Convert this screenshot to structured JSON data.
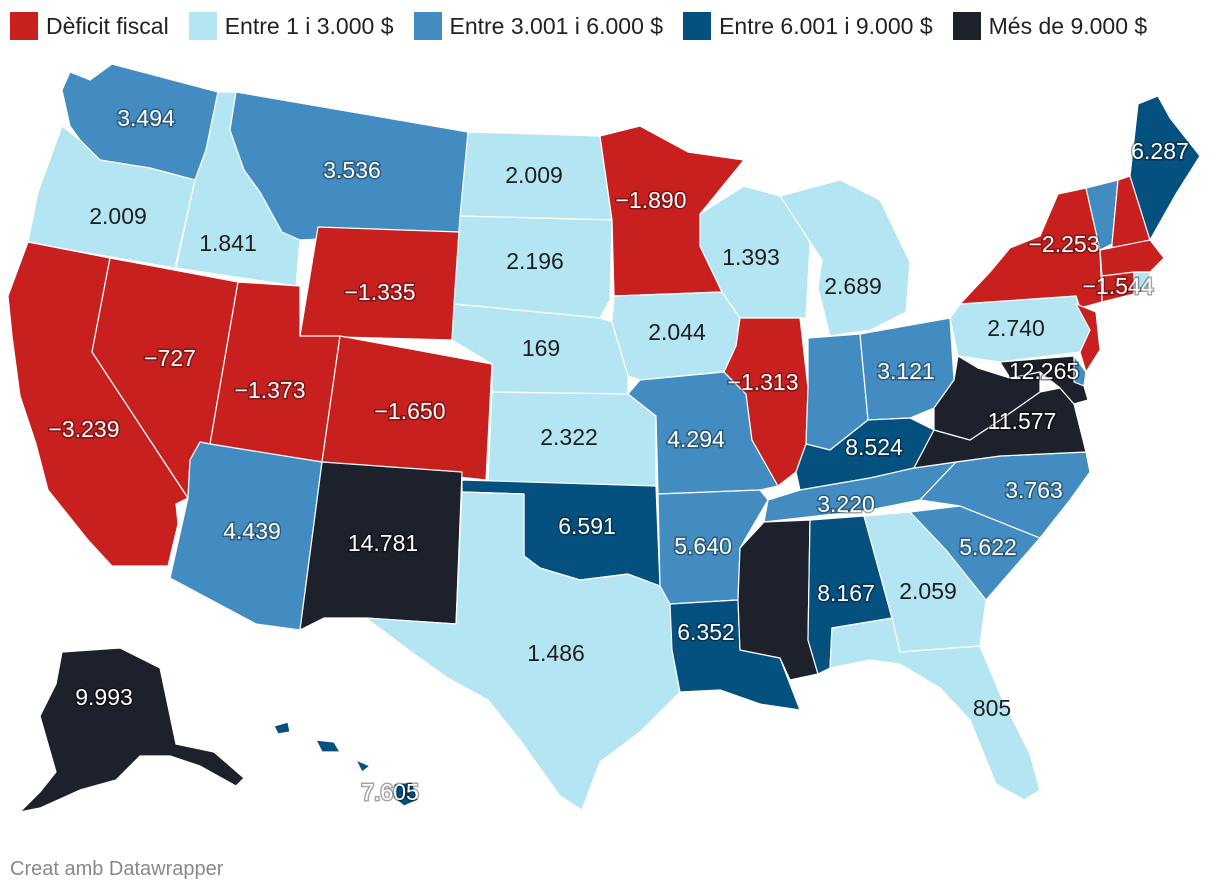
{
  "legend": [
    {
      "label": "Dèficit fiscal",
      "color": "#c8201f"
    },
    {
      "label": "Entre 1 i 3.000 $",
      "color": "#b4e5f2"
    },
    {
      "label": "Entre 3.001 i 6.000 $",
      "color": "#438cc1"
    },
    {
      "label": "Entre 6.001 i 9.000 $",
      "color": "#04507f"
    },
    {
      "label": "Més de 9.000 $",
      "color": "#1c212b"
    }
  ],
  "credit": "Creat amb Datawrapper",
  "chart_data": {
    "type": "choropleth",
    "title": "",
    "categories": [
      "Dèficit fiscal",
      "Entre 1 i 3.000 $",
      "Entre 3.001 i 6.000 $",
      "Entre 6.001 i 9.000 $",
      "Més de 9.000 $"
    ],
    "states": [
      {
        "id": "WA",
        "value": "3.494",
        "category": 2
      },
      {
        "id": "OR",
        "value": "2.009",
        "category": 1
      },
      {
        "id": "CA",
        "value": "−3.239",
        "category": 0
      },
      {
        "id": "ID",
        "value": "1.841",
        "category": 1
      },
      {
        "id": "NV",
        "value": "−727",
        "category": 0
      },
      {
        "id": "MT",
        "value": "3.536",
        "category": 2
      },
      {
        "id": "WY",
        "value": "−1.335",
        "category": 0
      },
      {
        "id": "UT",
        "value": "−1.373",
        "category": 0
      },
      {
        "id": "CO",
        "value": "−1.650",
        "category": 0
      },
      {
        "id": "AZ",
        "value": "4.439",
        "category": 2
      },
      {
        "id": "NM",
        "value": "14.781",
        "category": 4
      },
      {
        "id": "ND",
        "value": "2.009",
        "category": 1
      },
      {
        "id": "SD",
        "value": "2.196",
        "category": 1
      },
      {
        "id": "NE",
        "value": "169",
        "category": 1
      },
      {
        "id": "KS",
        "value": "2.322",
        "category": 1
      },
      {
        "id": "OK",
        "value": "6.591",
        "category": 3
      },
      {
        "id": "TX",
        "value": "1.486",
        "category": 1
      },
      {
        "id": "MN",
        "value": "−1.890",
        "category": 0
      },
      {
        "id": "IA",
        "value": "2.044",
        "category": 1
      },
      {
        "id": "MO",
        "value": "4.294",
        "category": 2
      },
      {
        "id": "AR",
        "value": "5.640",
        "category": 2
      },
      {
        "id": "LA",
        "value": "6.352",
        "category": 3
      },
      {
        "id": "WI",
        "value": "1.393",
        "category": 1
      },
      {
        "id": "IL",
        "value": "−1.313",
        "category": 0
      },
      {
        "id": "MI",
        "value": "2.689",
        "category": 1
      },
      {
        "id": "IN",
        "value": "",
        "category": 2
      },
      {
        "id": "OH",
        "value": "3.121",
        "category": 2
      },
      {
        "id": "KY",
        "value": "8.524",
        "category": 3
      },
      {
        "id": "TN",
        "value": "3.220",
        "category": 2
      },
      {
        "id": "MS",
        "value": "",
        "category": 4
      },
      {
        "id": "AL",
        "value": "8.167",
        "category": 3
      },
      {
        "id": "GA",
        "value": "2.059",
        "category": 1
      },
      {
        "id": "FL",
        "value": "805",
        "category": 1
      },
      {
        "id": "SC",
        "value": "5.622",
        "category": 2
      },
      {
        "id": "NC",
        "value": "3.763",
        "category": 2
      },
      {
        "id": "VA",
        "value": "11.577",
        "category": 4
      },
      {
        "id": "WV",
        "value": "",
        "category": 4
      },
      {
        "id": "PA",
        "value": "2.740",
        "category": 1
      },
      {
        "id": "NY",
        "value": "−2.253",
        "category": 0
      },
      {
        "id": "NJ",
        "value": "",
        "category": 0
      },
      {
        "id": "MD",
        "value": "12.265",
        "category": 4
      },
      {
        "id": "DE",
        "value": "",
        "category": 2
      },
      {
        "id": "VT",
        "value": "",
        "category": 2
      },
      {
        "id": "NH",
        "value": "",
        "category": 0
      },
      {
        "id": "MA",
        "value": "−1.544",
        "category": 0
      },
      {
        "id": "CT",
        "value": "",
        "category": 0
      },
      {
        "id": "RI",
        "value": "",
        "category": 1
      },
      {
        "id": "ME",
        "value": "6.287",
        "category": 3
      },
      {
        "id": "AK",
        "value": "9.993",
        "category": 4
      },
      {
        "id": "HI",
        "value": "7.605",
        "category": 3
      }
    ]
  }
}
